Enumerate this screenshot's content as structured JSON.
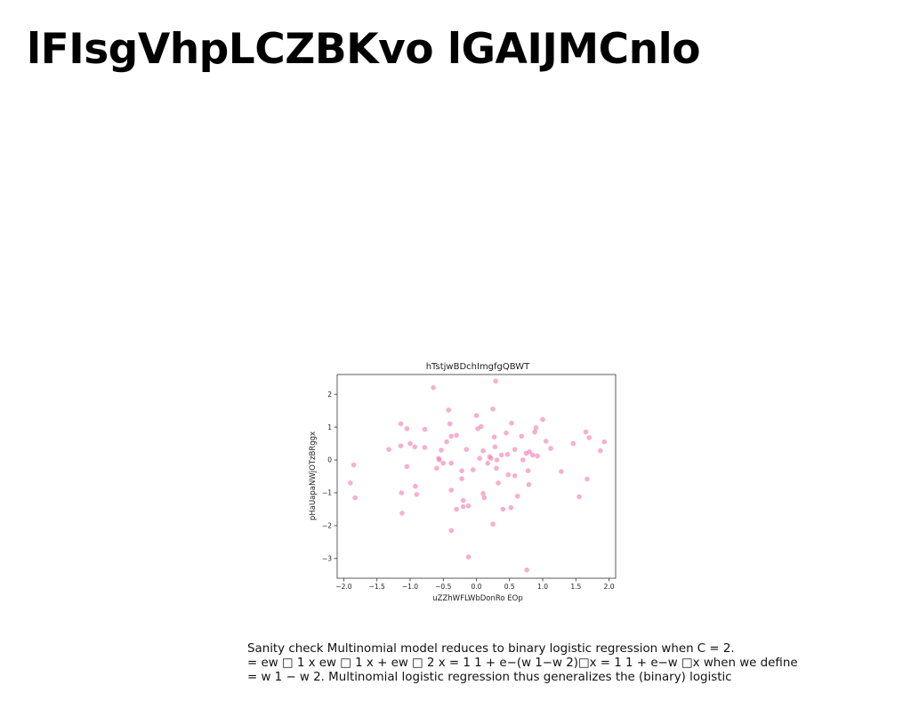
{
  "slide": {
    "title": "lFIsgVhpLCZBKvo lGAIJMCnlo"
  },
  "caption": {
    "lines": [
      "Sanity check Multinomial model reduces to binary logistic regression when C = 2.",
      "= ew □ 1 x ew □ 1 x + ew □ 2 x = 1 1 + e−(w 1−w 2)□x = 1 1 + e−w □x when we define",
      "= w 1 − w 2. Multinomial logistic regression thus generalizes the (binary) logistic"
    ]
  },
  "chart_data": {
    "type": "scatter",
    "title": "hTstjwBDchImgfgQBWT",
    "xlabel": "uZZhWFLWbDonRo EOp",
    "ylabel": "pHaUapaNWjOTzBRggx",
    "xlim": [
      -2.1,
      2.1
    ],
    "ylim": [
      -3.6,
      2.6
    ],
    "xticks": [
      -2.0,
      -1.5,
      -1.0,
      -0.5,
      0.0,
      0.5,
      1.0,
      1.5,
      2.0
    ],
    "xtick_labels": [
      "−2.0",
      "−1.5",
      "−1.0",
      "−0.5",
      "0.0",
      "0.5",
      "1.0",
      "1.5",
      "2.0"
    ],
    "yticks": [
      -3,
      -2,
      -1,
      0,
      1,
      2
    ],
    "ytick_labels": [
      "−3",
      "−2",
      "−1",
      "0",
      "1",
      "2"
    ],
    "grid": false,
    "marker_color": "#f07ab0",
    "series": [
      {
        "points": [
          [
            -1.9,
            -0.7
          ],
          [
            -1.85,
            -0.15
          ],
          [
            -1.83,
            -1.15
          ],
          [
            -1.32,
            0.32
          ],
          [
            -1.14,
            1.1
          ],
          [
            -1.14,
            0.43
          ],
          [
            -1.13,
            -1.0
          ],
          [
            -1.12,
            -1.62
          ],
          [
            -1.05,
            0.95
          ],
          [
            -1.05,
            -0.2
          ],
          [
            -1.0,
            0.5
          ],
          [
            -0.93,
            0.4
          ],
          [
            -0.92,
            -0.8
          ],
          [
            -0.9,
            -1.05
          ],
          [
            -0.78,
            0.93
          ],
          [
            -0.78,
            0.38
          ],
          [
            -0.65,
            2.2
          ],
          [
            -0.6,
            -0.25
          ],
          [
            -0.57,
            0.05
          ],
          [
            -0.56,
            0.0
          ],
          [
            -0.53,
            0.3
          ],
          [
            -0.5,
            -0.1
          ],
          [
            -0.45,
            0.55
          ],
          [
            -0.42,
            1.52
          ],
          [
            -0.4,
            1.1
          ],
          [
            -0.38,
            0.72
          ],
          [
            -0.38,
            -0.1
          ],
          [
            -0.38,
            -0.92
          ],
          [
            -0.38,
            -2.15
          ],
          [
            -0.3,
            0.75
          ],
          [
            -0.3,
            -1.5
          ],
          [
            -0.22,
            -0.33
          ],
          [
            -0.22,
            -0.57
          ],
          [
            -0.2,
            -1.23
          ],
          [
            -0.2,
            -1.42
          ],
          [
            -0.15,
            0.32
          ],
          [
            -0.12,
            -1.4
          ],
          [
            -0.12,
            -2.95
          ],
          [
            -0.05,
            -0.3
          ],
          [
            0.0,
            1.35
          ],
          [
            0.02,
            0.95
          ],
          [
            0.05,
            0.05
          ],
          [
            0.07,
            1.02
          ],
          [
            0.1,
            -1.02
          ],
          [
            0.1,
            0.28
          ],
          [
            0.12,
            -1.15
          ],
          [
            0.17,
            -0.1
          ],
          [
            0.2,
            0.1
          ],
          [
            0.22,
            0.05
          ],
          [
            0.25,
            1.55
          ],
          [
            0.25,
            -1.95
          ],
          [
            0.27,
            0.7
          ],
          [
            0.28,
            0.4
          ],
          [
            0.29,
            2.4
          ],
          [
            0.3,
            -0.25
          ],
          [
            0.31,
            0.0
          ],
          [
            0.33,
            -0.7
          ],
          [
            0.38,
            0.15
          ],
          [
            0.4,
            -1.5
          ],
          [
            0.45,
            0.82
          ],
          [
            0.47,
            0.17
          ],
          [
            0.48,
            -0.45
          ],
          [
            0.52,
            -1.45
          ],
          [
            0.53,
            1.12
          ],
          [
            0.58,
            -0.48
          ],
          [
            0.58,
            0.32
          ],
          [
            0.62,
            -1.1
          ],
          [
            0.68,
            0.72
          ],
          [
            0.7,
            0.0
          ],
          [
            0.75,
            0.2
          ],
          [
            0.76,
            -3.35
          ],
          [
            0.78,
            -0.33
          ],
          [
            0.79,
            -0.75
          ],
          [
            0.8,
            0.25
          ],
          [
            0.85,
            0.15
          ],
          [
            0.88,
            0.85
          ],
          [
            0.9,
            0.98
          ],
          [
            0.92,
            0.12
          ],
          [
            1.0,
            1.23
          ],
          [
            1.05,
            0.57
          ],
          [
            1.12,
            0.35
          ],
          [
            1.28,
            -0.35
          ],
          [
            1.46,
            0.5
          ],
          [
            1.55,
            -1.12
          ],
          [
            1.65,
            0.85
          ],
          [
            1.67,
            -0.58
          ],
          [
            1.7,
            0.68
          ],
          [
            1.87,
            0.28
          ],
          [
            1.93,
            0.55
          ]
        ]
      }
    ]
  }
}
